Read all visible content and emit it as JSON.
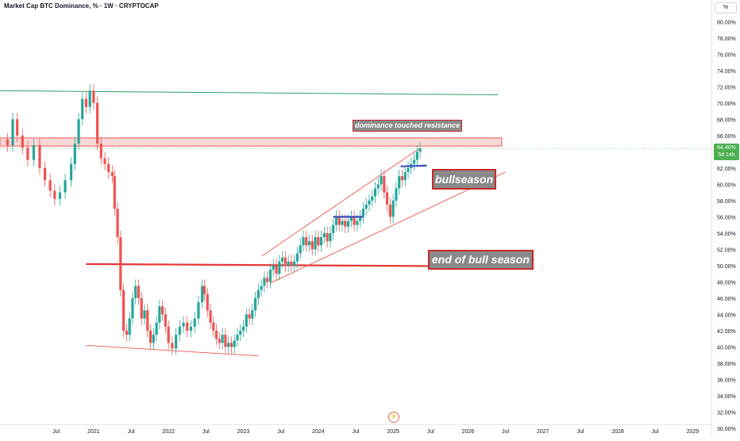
{
  "header": {
    "title": "Market Cap BTC Dominance, % · 1W · CRYPTOCAP",
    "unit_button": "%"
  },
  "price_badge": {
    "value": "64.40%",
    "countdown": "5d 14h"
  },
  "annotations": {
    "resistance": "dominance touched resistance",
    "bullseason": "bullseason",
    "end_bull": "end of bull season"
  },
  "chart_data": {
    "type": "line",
    "title": "Market Cap BTC Dominance, % · 1W · CRYPTOCAP",
    "ylabel": "%",
    "ylim": [
      30,
      81
    ],
    "y_ticks": [
      "30.00%",
      "32.00%",
      "34.00%",
      "36.00%",
      "38.00%",
      "40.00%",
      "42.00%",
      "44.00%",
      "46.00%",
      "48.00%",
      "50.00%",
      "52.00%",
      "54.00%",
      "56.00%",
      "58.00%",
      "60.00%",
      "62.00%",
      "64.00%",
      "66.00%",
      "68.00%",
      "70.00%",
      "72.00%",
      "74.00%",
      "76.00%",
      "78.00%",
      "80.00%"
    ],
    "x_ticks": [
      "Jul",
      "2021",
      "Jul",
      "2022",
      "Jul",
      "2023",
      "Jul",
      "2024",
      "Jul",
      "2025",
      "Jul",
      "2026",
      "Jul",
      "2027",
      "Jul",
      "2028",
      "Jul",
      "2029"
    ],
    "x_tick_years": [
      2020.5,
      2021,
      2021.5,
      2022,
      2022.5,
      2023,
      2023.5,
      2024,
      2024.5,
      2025,
      2025.5,
      2026,
      2026.5,
      2027,
      2027.5,
      2028,
      2028.5,
      2029
    ],
    "xlim": [
      2019.75,
      2029.25
    ],
    "series": [
      {
        "values": [
          [
            2019.78,
            65.5
          ],
          [
            2019.85,
            64.8
          ],
          [
            2019.92,
            68.0
          ],
          [
            2019.98,
            66.0
          ],
          [
            2020.05,
            64.5
          ],
          [
            2020.12,
            63.0
          ],
          [
            2020.2,
            64.8
          ],
          [
            2020.28,
            62.0
          ],
          [
            2020.35,
            60.5
          ],
          [
            2020.42,
            59.2
          ],
          [
            2020.48,
            58.2
          ],
          [
            2020.55,
            59.0
          ],
          [
            2020.62,
            60.5
          ],
          [
            2020.7,
            62.5
          ],
          [
            2020.75,
            65.0
          ],
          [
            2020.8,
            68.0
          ],
          [
            2020.85,
            70.5
          ],
          [
            2020.9,
            69.5
          ],
          [
            2020.95,
            71.5
          ],
          [
            2021.0,
            70.0
          ],
          [
            2021.05,
            65.0
          ],
          [
            2021.1,
            63.2
          ],
          [
            2021.15,
            62.5
          ],
          [
            2021.2,
            61.5
          ],
          [
            2021.25,
            61.0
          ],
          [
            2021.28,
            57.0
          ],
          [
            2021.32,
            53.5
          ],
          [
            2021.36,
            47.0
          ],
          [
            2021.4,
            42.0
          ],
          [
            2021.44,
            41.5
          ],
          [
            2021.48,
            43.5
          ],
          [
            2021.52,
            46.0
          ],
          [
            2021.56,
            47.5
          ],
          [
            2021.6,
            46.0
          ],
          [
            2021.64,
            43.5
          ],
          [
            2021.68,
            44.5
          ],
          [
            2021.72,
            42.0
          ],
          [
            2021.76,
            40.5
          ],
          [
            2021.8,
            41.5
          ],
          [
            2021.84,
            43.0
          ],
          [
            2021.88,
            45.0
          ],
          [
            2021.92,
            44.0
          ],
          [
            2021.96,
            42.5
          ],
          [
            2022.0,
            40.5
          ],
          [
            2022.05,
            39.8
          ],
          [
            2022.1,
            41.5
          ],
          [
            2022.15,
            42.5
          ],
          [
            2022.2,
            43.0
          ],
          [
            2022.25,
            42.0
          ],
          [
            2022.3,
            42.5
          ],
          [
            2022.35,
            43.5
          ],
          [
            2022.4,
            45.5
          ],
          [
            2022.45,
            47.5
          ],
          [
            2022.48,
            46.5
          ],
          [
            2022.52,
            44.5
          ],
          [
            2022.56,
            43.0
          ],
          [
            2022.6,
            42.0
          ],
          [
            2022.64,
            41.0
          ],
          [
            2022.68,
            40.5
          ],
          [
            2022.72,
            41.5
          ],
          [
            2022.76,
            40.0
          ],
          [
            2022.8,
            40.5
          ],
          [
            2022.84,
            40.0
          ],
          [
            2022.88,
            40.8
          ],
          [
            2022.92,
            41.5
          ],
          [
            2022.96,
            42.0
          ],
          [
            2023.0,
            42.5
          ],
          [
            2023.04,
            44.0
          ],
          [
            2023.08,
            43.5
          ],
          [
            2023.12,
            44.5
          ],
          [
            2023.16,
            46.0
          ],
          [
            2023.2,
            47.0
          ],
          [
            2023.24,
            47.5
          ],
          [
            2023.28,
            48.5
          ],
          [
            2023.32,
            48.0
          ],
          [
            2023.36,
            49.5
          ],
          [
            2023.4,
            50.0
          ],
          [
            2023.44,
            49.0
          ],
          [
            2023.48,
            50.5
          ],
          [
            2023.52,
            51.0
          ],
          [
            2023.56,
            50.0
          ],
          [
            2023.6,
            50.5
          ],
          [
            2023.64,
            50.0
          ],
          [
            2023.68,
            50.5
          ],
          [
            2023.72,
            51.5
          ],
          [
            2023.76,
            52.5
          ],
          [
            2023.8,
            53.5
          ],
          [
            2023.84,
            52.5
          ],
          [
            2023.88,
            53.0
          ],
          [
            2023.92,
            52.0
          ],
          [
            2023.96,
            53.5
          ],
          [
            2024.0,
            52.5
          ],
          [
            2024.04,
            53.5
          ],
          [
            2024.08,
            54.0
          ],
          [
            2024.12,
            53.0
          ],
          [
            2024.16,
            54.0
          ],
          [
            2024.2,
            55.0
          ],
          [
            2024.24,
            56.0
          ],
          [
            2024.28,
            55.0
          ],
          [
            2024.32,
            55.5
          ],
          [
            2024.36,
            54.8
          ],
          [
            2024.4,
            55.5
          ],
          [
            2024.44,
            56.0
          ],
          [
            2024.48,
            55.0
          ],
          [
            2024.52,
            55.5
          ],
          [
            2024.56,
            56.0
          ],
          [
            2024.6,
            57.0
          ],
          [
            2024.64,
            57.5
          ],
          [
            2024.68,
            58.0
          ],
          [
            2024.72,
            58.5
          ],
          [
            2024.76,
            59.5
          ],
          [
            2024.8,
            60.0
          ],
          [
            2024.84,
            61.0
          ],
          [
            2024.88,
            59.0
          ],
          [
            2024.92,
            57.5
          ],
          [
            2024.96,
            56.0
          ],
          [
            2025.0,
            58.0
          ],
          [
            2025.04,
            59.5
          ],
          [
            2025.08,
            61.0
          ],
          [
            2025.12,
            60.5
          ],
          [
            2025.16,
            61.5
          ],
          [
            2025.2,
            62.0
          ],
          [
            2025.24,
            62.5
          ],
          [
            2025.28,
            63.0
          ],
          [
            2025.32,
            64.0
          ],
          [
            2025.36,
            64.4
          ]
        ]
      }
    ],
    "overlays": {
      "green_horizontal": {
        "x": [
          2019.75,
          2026.4
        ],
        "y": [
          71.5,
          71.0
        ]
      },
      "resistance_zone": {
        "x": [
          2019.75,
          2026.45
        ],
        "y": [
          64.7,
          65.7
        ]
      },
      "red_horizontal": {
        "x": [
          2020.9,
          2026.3
        ],
        "y": [
          50.2,
          49.9
        ]
      },
      "channel_upper": {
        "x": [
          2023.25,
          2025.35
        ],
        "y": [
          51.2,
          64.4
        ]
      },
      "channel_lower": {
        "x": [
          2023.35,
          2026.5
        ],
        "y": [
          47.8,
          61.5
        ]
      },
      "support_line": {
        "x": [
          2020.9,
          2023.2
        ],
        "y": [
          40.2,
          38.9
        ]
      },
      "blue_marker_1": {
        "x": [
          2024.2,
          2024.6
        ],
        "y": [
          56.0,
          56.0
        ]
      },
      "blue_marker_2": {
        "x": [
          2025.1,
          2025.45
        ],
        "y": [
          62.2,
          62.3
        ]
      }
    },
    "current_value": 64.4,
    "grid": false,
    "legend": "none"
  },
  "colors": {
    "up": "#26a69a",
    "down": "#ef5350",
    "green_line": "#2e9e6b",
    "red_line": "#e53935",
    "channel": "#ef5350",
    "zone_fill": "#f6c7c6",
    "blue": "#3f51b5",
    "badge": "#4caf50"
  }
}
